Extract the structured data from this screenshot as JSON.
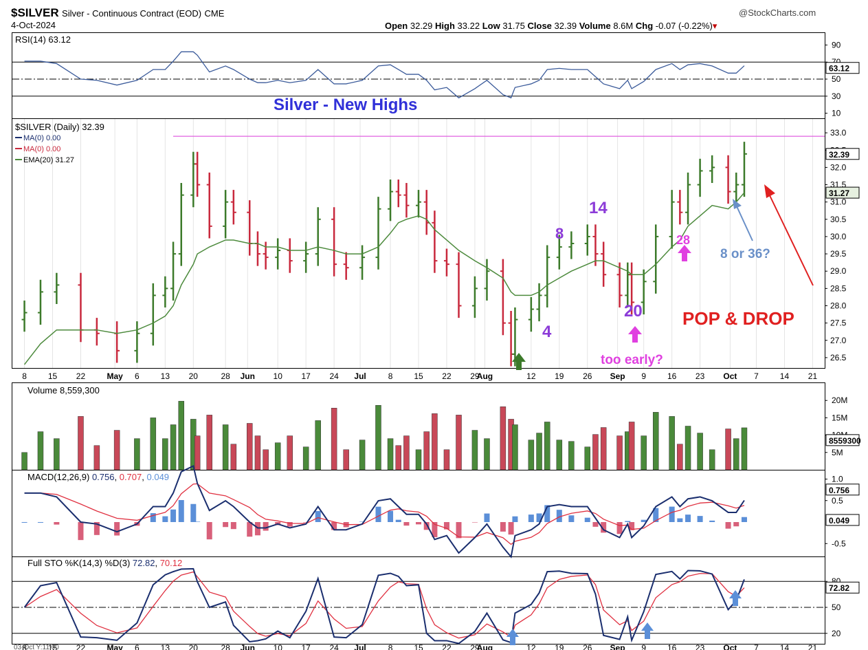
{
  "header": {
    "symbol": "$SILVER",
    "description": "Silver - Continuous Contract (EOD)",
    "exchange": "CME",
    "source": "@StockCharts.com",
    "date": "4-Oct-2024",
    "open_label": "Open",
    "open": "32.29",
    "high_label": "High",
    "high": "33.22",
    "low_label": "Low",
    "low": "31.75",
    "close_label": "Close",
    "close": "32.39",
    "volume_label": "Volume",
    "volume": "8.6M",
    "chg_label": "Chg",
    "chg": "-0.07 (-0.22%)"
  },
  "rsi": {
    "legend": "RSI(14) 63.12",
    "value_tag": "63.12",
    "ticks": [
      "90",
      "70",
      "50",
      "30",
      "10"
    ],
    "title": "Silver - New Highs"
  },
  "price": {
    "legend_main": "$SILVER (Daily) 32.39",
    "legend_ma1": "MA(0) 0.00",
    "legend_ma2": "MA(0) 0.00",
    "legend_ema": "EMA(20) 31.27",
    "ticks": [
      "33.0",
      "32.5",
      "32.0",
      "31.5",
      "31.0",
      "30.5",
      "30.0",
      "29.5",
      "29.0",
      "28.5",
      "28.0",
      "27.5",
      "27.0",
      "26.5"
    ],
    "tag_close": "32.39",
    "tag_ema": "31.27",
    "annotations": {
      "n8": "8",
      "n14": "14",
      "n28": "28",
      "n20": "20",
      "n4": "4",
      "eight_or_36": "8 or 36?",
      "pop_drop": "POP & DROP",
      "too_early": "too early?"
    }
  },
  "xaxis": {
    "labels": [
      "8",
      "15",
      "22",
      "May",
      "6",
      "13",
      "20",
      "28",
      "Jun",
      "10",
      "17",
      "24",
      "Jul",
      "8",
      "15",
      "22",
      "29",
      "Aug",
      "12",
      "19",
      "26",
      "Sep",
      "9",
      "16",
      "23",
      "Oct",
      "7",
      "14",
      "21"
    ]
  },
  "volume": {
    "legend": "Volume 8,559,300",
    "ticks": [
      "20M",
      "15M",
      "10M",
      "5M"
    ],
    "tag": "8559300"
  },
  "macd": {
    "legend_name": "MACD(12,26,9)",
    "legend_v1": "0.756",
    "legend_v2": "0.707",
    "legend_v3": "0.049",
    "ticks": [
      "1.0",
      "0.5",
      "-0.5"
    ],
    "tag1": "0.756",
    "tag2": "0.049"
  },
  "sto": {
    "legend_name": "Full STO %K(14,3) %D(3)",
    "legend_v1": "72.82",
    "legend_v2": "70.12",
    "ticks": [
      "80",
      "50",
      "20"
    ],
    "tag": "72.82",
    "footer": "03-Oct Y:11.00"
  },
  "colors": {
    "up": "#3c7a2a",
    "down": "#c8283c",
    "ema": "#4c8a3c",
    "rsi": "#3a5a9a",
    "macd": "#1a2e6e",
    "signal": "#e03040",
    "hist_pos": "#5b8fd8",
    "hist_neg": "#d8607a",
    "annot_purple": "#8c3cd8",
    "annot_magenta": "#e040e0",
    "annot_blue": "#6a90c8",
    "annot_red": "#e02020",
    "title_blue": "#3030d8"
  },
  "chart_data": {
    "type": "line",
    "title": "Silver - New Highs",
    "x": [
      "2024-04-08",
      "2024-04-12",
      "2024-04-16",
      "2024-04-22",
      "2024-04-26",
      "2024-05-01",
      "2024-05-06",
      "2024-05-10",
      "2024-05-13",
      "2024-05-15",
      "2024-05-17",
      "2024-05-20",
      "2024-05-21",
      "2024-05-24",
      "2024-05-28",
      "2024-05-30",
      "2024-06-03",
      "2024-06-05",
      "2024-06-07",
      "2024-06-10",
      "2024-06-13",
      "2024-06-17",
      "2024-06-20",
      "2024-06-24",
      "2024-06-27",
      "2024-07-01",
      "2024-07-05",
      "2024-07-08",
      "2024-07-10",
      "2024-07-12",
      "2024-07-15",
      "2024-07-17",
      "2024-07-19",
      "2024-07-22",
      "2024-07-25",
      "2024-07-29",
      "2024-08-01",
      "2024-08-05",
      "2024-08-07",
      "2024-08-08",
      "2024-08-12",
      "2024-08-14",
      "2024-08-16",
      "2024-08-19",
      "2024-08-22",
      "2024-08-26",
      "2024-08-28",
      "2024-08-30",
      "2024-09-03",
      "2024-09-05",
      "2024-09-06",
      "2024-09-09",
      "2024-09-12",
      "2024-09-16",
      "2024-09-18",
      "2024-09-20",
      "2024-09-23",
      "2024-09-26",
      "2024-09-30",
      "2024-10-02",
      "2024-10-04"
    ],
    "series": [
      {
        "name": "$SILVER",
        "values": [
          27.8,
          28.4,
          28.6,
          27.3,
          27.2,
          26.7,
          27.2,
          28.3,
          28.5,
          29.5,
          31.2,
          32.1,
          31.5,
          30.3,
          31.0,
          30.7,
          29.8,
          29.5,
          29.4,
          29.6,
          29.3,
          29.5,
          30.5,
          29.2,
          29.1,
          29.4,
          30.8,
          31.3,
          31.2,
          30.9,
          31.0,
          30.4,
          29.3,
          29.2,
          28.0,
          28.5,
          29.0,
          27.5,
          26.6,
          27.6,
          27.9,
          28.3,
          29.4,
          29.7,
          29.8,
          30.0,
          29.5,
          28.9,
          28.3,
          28.9,
          28.1,
          28.7,
          30.0,
          31.0,
          30.7,
          31.5,
          31.9,
          32.0,
          31.3,
          31.5,
          32.39
        ]
      },
      {
        "name": "EMA(20)",
        "values": [
          26.3,
          26.9,
          27.3,
          27.3,
          27.3,
          27.2,
          27.3,
          27.5,
          27.7,
          28.0,
          28.6,
          29.2,
          29.5,
          29.7,
          29.9,
          29.9,
          29.8,
          29.8,
          29.7,
          29.7,
          29.6,
          29.6,
          29.7,
          29.6,
          29.5,
          29.5,
          29.7,
          30.1,
          30.4,
          30.5,
          30.6,
          30.5,
          30.2,
          29.9,
          29.6,
          29.3,
          29.1,
          28.8,
          28.4,
          28.3,
          28.3,
          28.4,
          28.6,
          28.8,
          29.0,
          29.2,
          29.3,
          29.3,
          29.1,
          29.0,
          28.9,
          28.9,
          29.2,
          29.7,
          29.9,
          30.3,
          30.6,
          30.9,
          30.8,
          31.0,
          31.27
        ]
      }
    ],
    "ylim": [
      26.2,
      33.4
    ],
    "resistance": 32.9
  }
}
